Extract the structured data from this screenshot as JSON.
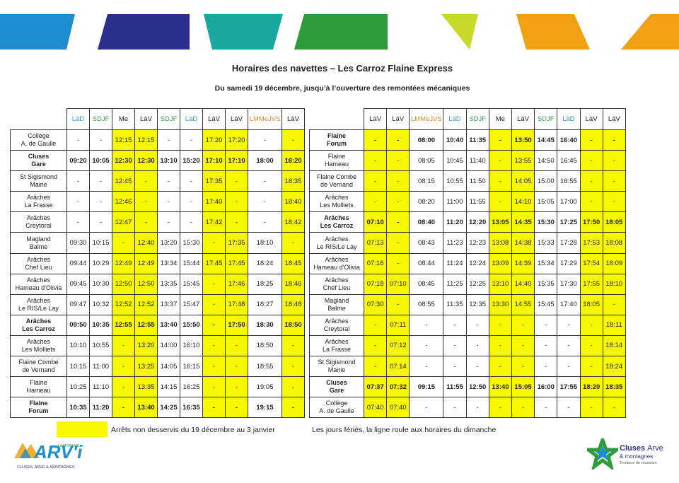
{
  "header": {
    "title": "Horaires des navettes – Les Carroz Flaine Express",
    "subtitle": "Du samedi 19 décembre, jusqu’à l’ouverture des remontées mécaniques"
  },
  "highlight_color": "#f7f700",
  "tables": [
    {
      "columns": [
        "LàD",
        "SDJF",
        "Me",
        "LàV",
        "SDJF",
        "LàD",
        "LàV",
        "LàV",
        "LMMeJVS",
        "LàV"
      ],
      "column_colors": [
        "#2aa0c8",
        "#3aa54a",
        "#222222",
        "#222222",
        "#3aa54a",
        "#2aa0c8",
        "#222222",
        "#222222",
        "#e08a2a",
        "#222222"
      ],
      "yellow_columns": [
        2,
        3,
        6,
        7,
        9
      ],
      "bold_rows": [
        1,
        9,
        13
      ],
      "rows": [
        {
          "stop": [
            "Collège",
            "A. de Gaulle"
          ],
          "times": [
            "-",
            "-",
            "12:15",
            "12:15",
            "-",
            "-",
            "17:20",
            "17:20",
            "-",
            "-"
          ]
        },
        {
          "stop": [
            "Cluses",
            "Gare"
          ],
          "times": [
            "09:20",
            "10:05",
            "12:30",
            "12:30",
            "13:10",
            "15:20",
            "17:10",
            "17:10",
            "18:00",
            "18:20"
          ]
        },
        {
          "stop": [
            "St Sigismond",
            "Mairie"
          ],
          "times": [
            "-",
            "-",
            "12:45",
            "-",
            "-",
            "-",
            "17:35",
            "-",
            "-",
            "18:35"
          ]
        },
        {
          "stop": [
            "Arâches",
            "La Frasse"
          ],
          "times": [
            "-",
            "-",
            "12:46",
            "-",
            "-",
            "-",
            "17:40",
            "-",
            "-",
            "18:40"
          ]
        },
        {
          "stop": [
            "Arâches",
            "Creytoral"
          ],
          "times": [
            "-",
            "-",
            "12:47",
            "-",
            "-",
            "-",
            "17:42",
            "-",
            "-",
            "18:42"
          ]
        },
        {
          "stop": [
            "Magland",
            "Balme"
          ],
          "times": [
            "09:30",
            "10:15",
            "-",
            "12:40",
            "13:20",
            "15:30",
            "-",
            "17:35",
            "18:10",
            "-"
          ]
        },
        {
          "stop": [
            "Arâches",
            "Chef Lieu"
          ],
          "times": [
            "09:44",
            "10:29",
            "12:49",
            "12:49",
            "13:34",
            "15:44",
            "17:45",
            "17:45",
            "18:24",
            "18:45"
          ]
        },
        {
          "stop": [
            "Arâches",
            "Hameau d'Olivia"
          ],
          "times": [
            "09:45",
            "10:30",
            "12:50",
            "12:50",
            "13:35",
            "15:45",
            "-",
            "17:46",
            "18:25",
            "18:46"
          ]
        },
        {
          "stop": [
            "Arâches",
            "Le RIS/Le Lay"
          ],
          "times": [
            "09:47",
            "10:32",
            "12:52",
            "12:52",
            "13:37",
            "15:47",
            "-",
            "17:48",
            "18:27",
            "18:48"
          ]
        },
        {
          "stop": [
            "Arâches",
            "Les Carroz"
          ],
          "times": [
            "09:50",
            "10:35",
            "12:55",
            "12:55",
            "13:40",
            "15:50",
            "-",
            "17:50",
            "18:30",
            "18:50"
          ]
        },
        {
          "stop": [
            "Arâches",
            "Les Molliets"
          ],
          "times": [
            "10:10",
            "10:55",
            "-",
            "13:20",
            "14:00",
            "16:10",
            "-",
            "-",
            "18:50",
            "-"
          ]
        },
        {
          "stop": [
            "Flaine Combe",
            "de Vernand"
          ],
          "times": [
            "10:15",
            "11:00",
            "-",
            "13:25",
            "14:05",
            "16:15",
            "-",
            "-",
            "18:55",
            "-"
          ]
        },
        {
          "stop": [
            "Flaine",
            "Hameau"
          ],
          "times": [
            "10:25",
            "11:10",
            "-",
            "13:35",
            "14:15",
            "16:25",
            "-",
            "-",
            "19:05",
            "-"
          ]
        },
        {
          "stop": [
            "Flaine",
            "Forum"
          ],
          "times": [
            "10:35",
            "11:20",
            "-",
            "13:40",
            "14:25",
            "16:35",
            "-",
            "-",
            "19:15",
            "-"
          ]
        }
      ]
    },
    {
      "columns": [
        "LàV",
        "LàV",
        "LMMeJVS",
        "LàD",
        "SDJF",
        "Me",
        "LàV",
        "SDJF",
        "LàD",
        "LàV",
        "LàV"
      ],
      "column_colors": [
        "#222222",
        "#222222",
        "#e08a2a",
        "#2aa0c8",
        "#3aa54a",
        "#222222",
        "#222222",
        "#3aa54a",
        "#2aa0c8",
        "#222222",
        "#222222"
      ],
      "yellow_columns": [
        0,
        1,
        5,
        6,
        9,
        10
      ],
      "bold_rows": [
        0,
        4,
        12
      ],
      "rows": [
        {
          "stop": [
            "Flaine",
            "Forum"
          ],
          "times": [
            "-",
            "-",
            "08:00",
            "10:40",
            "11:35",
            "-",
            "13:50",
            "14:45",
            "16:40",
            "-",
            "-"
          ]
        },
        {
          "stop": [
            "Flaine",
            "Hameau"
          ],
          "times": [
            "-",
            "-",
            "08:05",
            "10:45",
            "11:40",
            "-",
            "13:55",
            "14:50",
            "16:45",
            "-",
            "-"
          ]
        },
        {
          "stop": [
            "Flaine Combe",
            "de Vernand"
          ],
          "times": [
            "-",
            "-",
            "08:15",
            "10:55",
            "11:50",
            "-",
            "14:05",
            "15:00",
            "16:55",
            "-",
            "-"
          ]
        },
        {
          "stop": [
            "Arâches",
            "Les Molliets"
          ],
          "times": [
            "-",
            "-",
            "08:20",
            "11:00",
            "11:55",
            "-",
            "14:10",
            "15:05",
            "17:00",
            "-",
            "-"
          ]
        },
        {
          "stop": [
            "Arâches",
            "Les Carroz"
          ],
          "times": [
            "07:10",
            "-",
            "08:40",
            "11:20",
            "12:20",
            "13:05",
            "14:35",
            "15:30",
            "17:25",
            "17:50",
            "18:05"
          ]
        },
        {
          "stop": [
            "Arâches",
            "Le RIS/Le Lay"
          ],
          "times": [
            "07:13",
            "-",
            "08:43",
            "11:23",
            "12:23",
            "13:08",
            "14:38",
            "15:33",
            "17:28",
            "17:53",
            "18:08"
          ]
        },
        {
          "stop": [
            "Arâches",
            "Hameau d'Olivia"
          ],
          "times": [
            "07:16",
            "-",
            "08:44",
            "11:24",
            "12:24",
            "13:09",
            "14:39",
            "15:34",
            "17:29",
            "17:54",
            "18:09"
          ]
        },
        {
          "stop": [
            "Arâches",
            "Chef Lieu"
          ],
          "times": [
            "07:18",
            "07:10",
            "08:45",
            "11:25",
            "12:25",
            "13:10",
            "14:40",
            "15:35",
            "17:30",
            "17:55",
            "18:10"
          ]
        },
        {
          "stop": [
            "Magland",
            "Balme"
          ],
          "times": [
            "07:30",
            "-",
            "08:55",
            "11:35",
            "12:35",
            "13:30",
            "14:55",
            "15:45",
            "17:40",
            "18:05",
            "-"
          ]
        },
        {
          "stop": [
            "Arâches",
            "Creytoral"
          ],
          "times": [
            "-",
            "07:11",
            "-",
            "-",
            "-",
            "-",
            "-",
            "-",
            "-",
            "-",
            "18:11"
          ]
        },
        {
          "stop": [
            "Arâches",
            "La Frasse"
          ],
          "times": [
            "-",
            "07:12",
            "-",
            "-",
            "-",
            "-",
            "-",
            "-",
            "-",
            "-",
            "18:14"
          ]
        },
        {
          "stop": [
            "St Sigismond",
            "Mairie"
          ],
          "times": [
            "-",
            "07:14",
            "-",
            "-",
            "-",
            "-",
            "-",
            "-",
            "-",
            "-",
            "18:24"
          ]
        },
        {
          "stop": [
            "Cluses",
            "Gare"
          ],
          "times": [
            "07:37",
            "07:32",
            "09:15",
            "11:55",
            "12:50",
            "13:40",
            "15:05",
            "16:00",
            "17:55",
            "18:20",
            "18:35"
          ]
        },
        {
          "stop": [
            "Collège",
            "A. de Gaulle"
          ],
          "times": [
            "07:40",
            "07:40",
            "-",
            "-",
            "-",
            "-",
            "-",
            "-",
            "-",
            "-",
            "-"
          ]
        }
      ]
    }
  ],
  "legend": {
    "text": "Arrêts non desservis du 19 décembre au 3 janvier"
  },
  "note": "Les jours fériés, la ligne roule aux horaires du dimanche",
  "logos": {
    "left": {
      "name": "ARV'i",
      "tagline": "LA MOBILITÉ",
      "sub": "CLUSES, ARVE & MONTAGNES"
    },
    "right": {
      "name": "Cluses",
      "name2": "Arve",
      "name3": "& montagnes",
      "tagline": "Territoire de réussites"
    }
  }
}
